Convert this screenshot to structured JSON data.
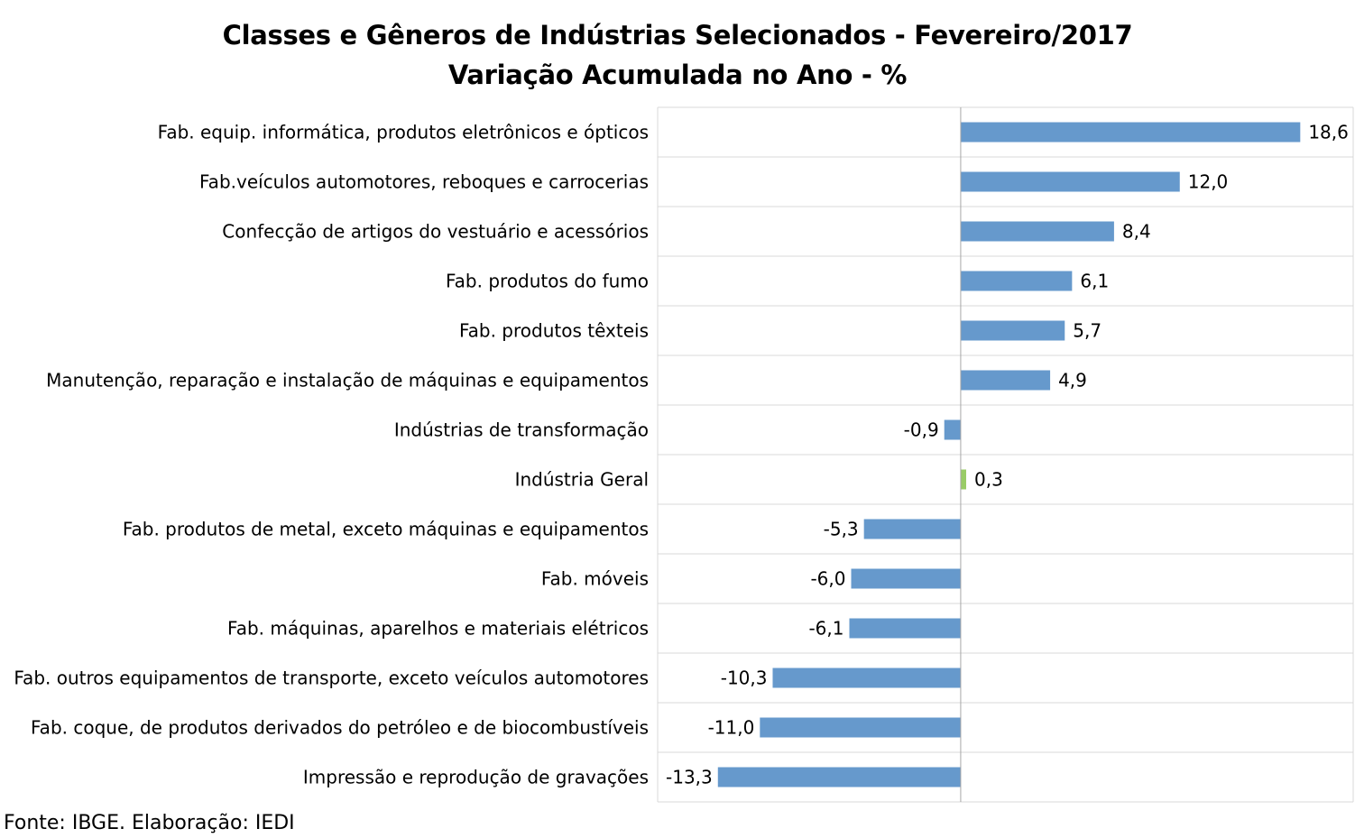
{
  "chart_data": {
    "type": "bar",
    "orientation": "horizontal",
    "title": "Classes e Gêneros de Indústrias Selecionados - Fevereiro/2017",
    "subtitle": "Variação Acumulada no Ano - %",
    "categories": [
      "Fab. equip. informática, produtos eletrônicos e ópticos",
      "Fab.veículos automotores, reboques e carrocerias",
      "Confecção de artigos do vestuário e acessórios",
      "Fab. produtos do fumo",
      "Fab. produtos têxteis",
      "Manutenção, reparação e instalação de máquinas e equipamentos",
      "Indústrias de transformação",
      "Indústria Geral",
      "Fab. produtos de metal, exceto máquinas e equipamentos",
      "Fab. móveis",
      "Fab. máquinas, aparelhos e materiais elétricos",
      "Fab. outros equipamentos de transporte, exceto veículos automotores",
      "Fab. coque, de produtos derivados do petróleo e de biocombustíveis",
      "Impressão e reprodução de gravações"
    ],
    "values": [
      18.6,
      12.0,
      8.4,
      6.1,
      5.7,
      4.9,
      -0.9,
      0.3,
      -5.3,
      -6.0,
      -6.1,
      -10.3,
      -11.0,
      -13.3
    ],
    "value_labels": [
      "18,6",
      "12,0",
      "8,4",
      "6,1",
      "5,7",
      "4,9",
      "-0,9",
      "0,3",
      "-5,3",
      "-6,0",
      "-6,1",
      "-10,3",
      "-11,0",
      "-13,3"
    ],
    "bar_colors": [
      "#6699cc",
      "#6699cc",
      "#6699cc",
      "#6699cc",
      "#6699cc",
      "#6699cc",
      "#6699cc",
      "#99cc66",
      "#6699cc",
      "#6699cc",
      "#6699cc",
      "#6699cc",
      "#6699cc",
      "#6699cc"
    ],
    "xlim": [
      -16.6,
      21.5
    ],
    "grid": true,
    "legend": "none"
  },
  "source": "Fonte: IBGE. Elaboração: IEDI"
}
